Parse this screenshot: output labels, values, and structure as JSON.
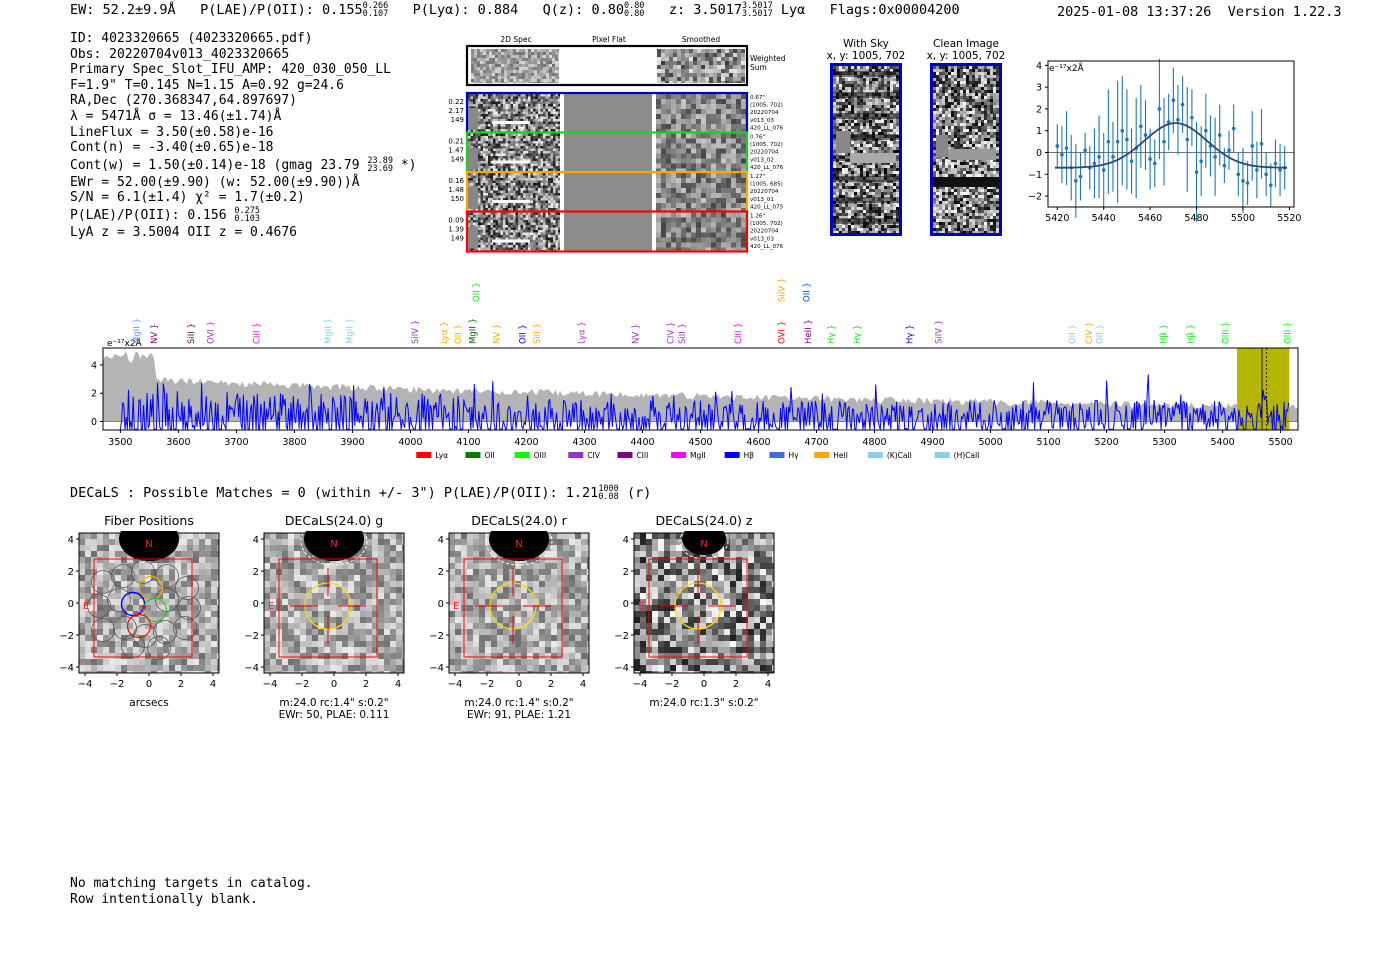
{
  "header": {
    "ew": "EW: 52.2±9.9Å",
    "plae_label": "P(LAE)/P(OII): 0.155",
    "plae_hi": "0.266",
    "plae_lo": "0.107",
    "plya": "P(Lyα): 0.884",
    "qz_label": "Q(z): 0.80",
    "qz_hi": "0.80",
    "qz_lo": "0.80",
    "z_label": "z: 3.5017",
    "z_hi": "3.5017",
    "z_lo": "3.5017",
    "line": "Lyα",
    "flags": "Flags:0x00004200",
    "datetime": "2025-01-08 13:37:26",
    "version": "Version 1.22.3"
  },
  "info": {
    "id": "ID: 4023320665 (4023320665.pdf)",
    "obs": "Obs: 20220704v013_4023320665",
    "primary": "Primary Spec_Slot_IFU_AMP: 420_030_050_LL",
    "fit": "F=1.9\"  T=0.145  N=1.15  A=0.92  g=24.6",
    "radec": "RA,Dec (270.368347,64.897697)",
    "lambda": "λ = 5471Å  σ = 13.46(±1.74)Å",
    "lineflux": "LineFlux = 3.50(±0.58)e-16",
    "contn": "Cont(n) = -3.40(±0.65)e-18",
    "contw": "Cont(w) = 1.50(±0.14)e-18 (gmag 23.79",
    "contw_hi": "23.89",
    "contw_lo": "23.69",
    "contw_end": "*)",
    "ewr": "EWr = 52.00(±9.90) (w: 52.00(±9.90))Å",
    "sn": "S/N = 6.1(±1.4)  χ² = 1.7(±0.2)",
    "plae": "P(LAE)/P(OII): 0.156",
    "plae_hi": "0.275",
    "plae_lo": "0.103",
    "lyaz": "LyA z = 3.5004  OII z = 0.4676"
  },
  "spec2d": {
    "col_titles": [
      "2D Spec",
      "Pixel Flat",
      "Smoothed"
    ],
    "weighted": [
      "Weighted",
      "Sum"
    ],
    "rows": [
      {
        "color": "#0000cc",
        "left": [
          "0.22",
          "2.17",
          "149"
        ],
        "right": [
          "0.67\"",
          "(1005, 702)",
          "20220704",
          "v013_03",
          "420_LL_076"
        ]
      },
      {
        "color": "#22cc22",
        "left": [
          "0.21",
          "1.47",
          "149"
        ],
        "right": [
          "0.76\"",
          "(1005, 702)",
          "20220704",
          "v013_02",
          "420_LL_076"
        ]
      },
      {
        "color": "#ffa500",
        "left": [
          "0.16",
          "1.48",
          "150"
        ],
        "right": [
          "1.27\"",
          "(1005, 685)",
          "20220704",
          "v013_01",
          "420_LL_075"
        ]
      },
      {
        "color": "#ff0000",
        "left": [
          "0.09",
          "1.39",
          "149"
        ],
        "right": [
          "1.26\"",
          "(1005, 702)",
          "20220704",
          "v013_03",
          "420_LL_076"
        ]
      }
    ]
  },
  "images": {
    "withsky_title": "With Sky",
    "withsky_coords": "x, y: 1005, 702",
    "clean_title": "Clean Image",
    "clean_coords": "x, y: 1005, 702"
  },
  "zoom_chart_data": {
    "type": "scatter",
    "title": "",
    "unit_label": "e⁻¹⁷x2Å",
    "xlim": [
      5416,
      5522
    ],
    "ylim": [
      -2.5,
      4.2
    ],
    "xticks": [
      5420,
      5440,
      5460,
      5480,
      5500,
      5520
    ],
    "yticks": [
      -2,
      -1,
      0,
      1,
      2,
      3,
      4
    ],
    "points": [
      {
        "x": 5420,
        "y": 0.3,
        "e": 1.0
      },
      {
        "x": 5422,
        "y": -0.1,
        "e": 1.3
      },
      {
        "x": 5424,
        "y": 0.2,
        "e": 1.7
      },
      {
        "x": 5426,
        "y": -0.7,
        "e": 1.5
      },
      {
        "x": 5428,
        "y": -1.3,
        "e": 1.7
      },
      {
        "x": 5430,
        "y": -1.1,
        "e": 1.1
      },
      {
        "x": 5432,
        "y": 0.1,
        "e": 0.8
      },
      {
        "x": 5434,
        "y": -0.7,
        "e": 1.0
      },
      {
        "x": 5436,
        "y": -0.5,
        "e": 1.6
      },
      {
        "x": 5438,
        "y": -0.2,
        "e": 1.9
      },
      {
        "x": 5440,
        "y": -0.8,
        "e": 1.7
      },
      {
        "x": 5442,
        "y": 0.5,
        "e": 2.4
      },
      {
        "x": 5444,
        "y": -0.2,
        "e": 1.6
      },
      {
        "x": 5446,
        "y": 0.5,
        "e": 2.8
      },
      {
        "x": 5448,
        "y": 1.0,
        "e": 2.5
      },
      {
        "x": 5450,
        "y": 0.6,
        "e": 2.3
      },
      {
        "x": 5452,
        "y": -0.4,
        "e": 1.5
      },
      {
        "x": 5454,
        "y": 0.2,
        "e": 2.3
      },
      {
        "x": 5456,
        "y": 1.2,
        "e": 1.9
      },
      {
        "x": 5458,
        "y": 0.8,
        "e": 1.6
      },
      {
        "x": 5460,
        "y": -0.3,
        "e": 1.4
      },
      {
        "x": 5462,
        "y": -0.5,
        "e": 1.1
      },
      {
        "x": 5464,
        "y": 2.0,
        "e": 2.3
      },
      {
        "x": 5466,
        "y": 0.5,
        "e": 2.0
      },
      {
        "x": 5468,
        "y": 1.4,
        "e": 1.3
      },
      {
        "x": 5470,
        "y": 2.4,
        "e": 1.5
      },
      {
        "x": 5472,
        "y": 1.5,
        "e": 1.6
      },
      {
        "x": 5474,
        "y": 2.2,
        "e": 1.3
      },
      {
        "x": 5476,
        "y": 0.6,
        "e": 2.4
      },
      {
        "x": 5478,
        "y": 1.6,
        "e": 1.3
      },
      {
        "x": 5480,
        "y": -0.9,
        "e": 2.3
      },
      {
        "x": 5482,
        "y": -0.4,
        "e": 1.6
      },
      {
        "x": 5484,
        "y": 1.0,
        "e": 1.7
      },
      {
        "x": 5486,
        "y": 0.3,
        "e": 1.4
      },
      {
        "x": 5488,
        "y": -0.2,
        "e": 1.8
      },
      {
        "x": 5490,
        "y": 0.8,
        "e": 1.4
      },
      {
        "x": 5492,
        "y": -0.6,
        "e": 0.8
      },
      {
        "x": 5494,
        "y": 0.1,
        "e": 0.9
      },
      {
        "x": 5496,
        "y": 1.1,
        "e": 1.1
      },
      {
        "x": 5498,
        "y": -1.0,
        "e": 1.0
      },
      {
        "x": 5500,
        "y": -1.3,
        "e": 1.5
      },
      {
        "x": 5502,
        "y": -1.4,
        "e": 1.0
      },
      {
        "x": 5504,
        "y": 0.3,
        "e": 1.6
      },
      {
        "x": 5506,
        "y": -0.8,
        "e": 1.3
      },
      {
        "x": 5508,
        "y": 0.4,
        "e": 1.6
      },
      {
        "x": 5510,
        "y": -1.0,
        "e": 1.0
      },
      {
        "x": 5512,
        "y": -1.5,
        "e": 1.0
      },
      {
        "x": 5514,
        "y": -0.5,
        "e": 1.1
      },
      {
        "x": 5516,
        "y": -0.8,
        "e": 1.2
      },
      {
        "x": 5518,
        "y": -0.7,
        "e": 1.0
      }
    ],
    "fit": {
      "mu": 5471,
      "sigma": 13.46,
      "amp": 2.05,
      "cont": -0.7
    }
  },
  "spectrum_chart_data": {
    "type": "line",
    "unit_label": "e⁻¹⁷x2Å",
    "xlim": [
      3470,
      5530
    ],
    "ylim": [
      -0.6,
      5.2
    ],
    "xticks": [
      3500,
      3600,
      3700,
      3800,
      3900,
      4000,
      4100,
      4200,
      4300,
      4400,
      4500,
      4600,
      4700,
      4800,
      4900,
      5000,
      5100,
      5200,
      5300,
      5400,
      5500
    ],
    "yticks": [
      0,
      2,
      4
    ],
    "highlight": [
      5425,
      5515
    ],
    "line_marker": 5471,
    "series": [
      {
        "name": "flux",
        "color": "#0000ff",
        "seed": 17,
        "x_start": 3500,
        "x_end": 5515,
        "step": 2
      },
      {
        "name": "noise",
        "color": "#b4b4b4",
        "level_start": 3.3,
        "level_end": 1.0
      }
    ],
    "line_labels": [
      {
        "name": "MgII",
        "x": 3528,
        "color": "#6495ed",
        "row": 0
      },
      {
        "name": "NV",
        "x": 3558,
        "color": "#800080",
        "row": 0
      },
      {
        "name": "SiII",
        "x": 3622,
        "color": "#800080",
        "row": 0
      },
      {
        "name": "OVI",
        "x": 3655,
        "color": "#9932cc",
        "row": 0
      },
      {
        "name": "CIII",
        "x": 3735,
        "color": "#ff00ff",
        "row": 0
      },
      {
        "name": "MgII",
        "x": 3858,
        "color": "#87ceeb",
        "row": 0
      },
      {
        "name": "MgII",
        "x": 3895,
        "color": "#87ceeb",
        "row": 0
      },
      {
        "name": "SiIV",
        "x": 4008,
        "color": "#9932cc",
        "row": 0
      },
      {
        "name": "Lyα",
        "x": 4058,
        "color": "#ffa500",
        "row": 0
      },
      {
        "name": "OII",
        "x": 4082,
        "color": "#ffa500",
        "row": 0
      },
      {
        "name": "MgII",
        "x": 4107,
        "color": "#006400",
        "row": 0
      },
      {
        "name": "OII",
        "x": 4113,
        "color": "#00ee00",
        "row": 1
      },
      {
        "name": "NV",
        "x": 4148,
        "color": "#ffa500",
        "row": 0
      },
      {
        "name": "OII",
        "x": 4193,
        "color": "#0000cc",
        "row": 0
      },
      {
        "name": "SiII",
        "x": 4218,
        "color": "#ffa500",
        "row": 0
      },
      {
        "name": "Lyα",
        "x": 4295,
        "color": "#9932cc",
        "row": 0
      },
      {
        "name": "NV",
        "x": 4388,
        "color": "#9932cc",
        "row": 0
      },
      {
        "name": "CIV",
        "x": 4448,
        "color": "#9932cc",
        "row": 0
      },
      {
        "name": "SiII",
        "x": 4468,
        "color": "#9932cc",
        "row": 0
      },
      {
        "name": "CIII",
        "x": 4565,
        "color": "#ff00ff",
        "row": 0
      },
      {
        "name": "SiIV",
        "x": 4640,
        "color": "#ffa500",
        "row": 1
      },
      {
        "name": "OVI",
        "x": 4640,
        "color": "#ff0000",
        "row": 0
      },
      {
        "name": "OII",
        "x": 4683,
        "color": "#0044cc",
        "row": 1
      },
      {
        "name": "HeII",
        "x": 4685,
        "color": "#800080",
        "row": 0
      },
      {
        "name": "Hγ",
        "x": 4725,
        "color": "#00ee00",
        "row": 0
      },
      {
        "name": "Hγ",
        "x": 4770,
        "color": "#00ee00",
        "row": 0
      },
      {
        "name": "Hγ",
        "x": 4860,
        "color": "#0000cc",
        "row": 0
      },
      {
        "name": "SiIV",
        "x": 4910,
        "color": "#9932cc",
        "row": 0
      },
      {
        "name": "OII",
        "x": 5140,
        "color": "#87ceeb",
        "row": 0
      },
      {
        "name": "CIV",
        "x": 5170,
        "color": "#ffa500",
        "row": 0
      },
      {
        "name": "OII",
        "x": 5188,
        "color": "#87ceeb",
        "row": 0
      },
      {
        "name": "Hβ",
        "x": 5298,
        "color": "#00ee00",
        "row": 0
      },
      {
        "name": "Hβ",
        "x": 5345,
        "color": "#00ee00",
        "row": 0
      },
      {
        "name": "OIII",
        "x": 5405,
        "color": "#00ee00",
        "row": 0
      },
      {
        "name": "OIII",
        "x": 5512,
        "color": "#00ee00",
        "row": 0
      }
    ],
    "legend": [
      {
        "name": "Lyα",
        "color": "#ff0000"
      },
      {
        "name": "OII",
        "color": "#008000"
      },
      {
        "name": "OIII",
        "color": "#00ff00"
      },
      {
        "name": "CIV",
        "color": "#9932cc"
      },
      {
        "name": "CIII",
        "color": "#800080"
      },
      {
        "name": "MgII",
        "color": "#ff00ff"
      },
      {
        "name": "Hβ",
        "color": "#0000ff"
      },
      {
        "name": "Hγ",
        "color": "#4169e1"
      },
      {
        "name": "HeII",
        "color": "#ffa500"
      },
      {
        "name": "(K)CaII",
        "color": "#87ceeb"
      },
      {
        "name": "(H)CaII",
        "color": "#87ceeb"
      }
    ]
  },
  "decals": {
    "heading": "DECaLS : Possible Matches = 0 (within +/- 3\")  P(LAE)/P(OII): 1.21",
    "heading_hi": "1000",
    "heading_lo": "0.08",
    "heading_end": "(r)",
    "panels": [
      {
        "title": "Fiber Positions",
        "cap1": "arcsecs",
        "cap2": ""
      },
      {
        "title": "DECaLS(24.0) g",
        "cap1": "m:24.0 rc:1.4\"  s:0.2\"",
        "cap2": "EWr: 50, PLAE: 0.111"
      },
      {
        "title": "DECaLS(24.0) r",
        "cap1": "m:24.0 rc:1.4\"  s:0.2\"",
        "cap2": "EWr: 91, PLAE: 1.21"
      },
      {
        "title": "DECaLS(24.0) z",
        "cap1": "m:24.0 rc:1.3\"  s:0.2\"",
        "cap2": ""
      }
    ],
    "ticks": [
      "−4",
      "−2",
      "0",
      "2",
      "4"
    ],
    "n_label": "N",
    "e_label": "E"
  },
  "footer": {
    "line1": "No matching targets in catalog.",
    "line2": "Row intentionally blank."
  }
}
